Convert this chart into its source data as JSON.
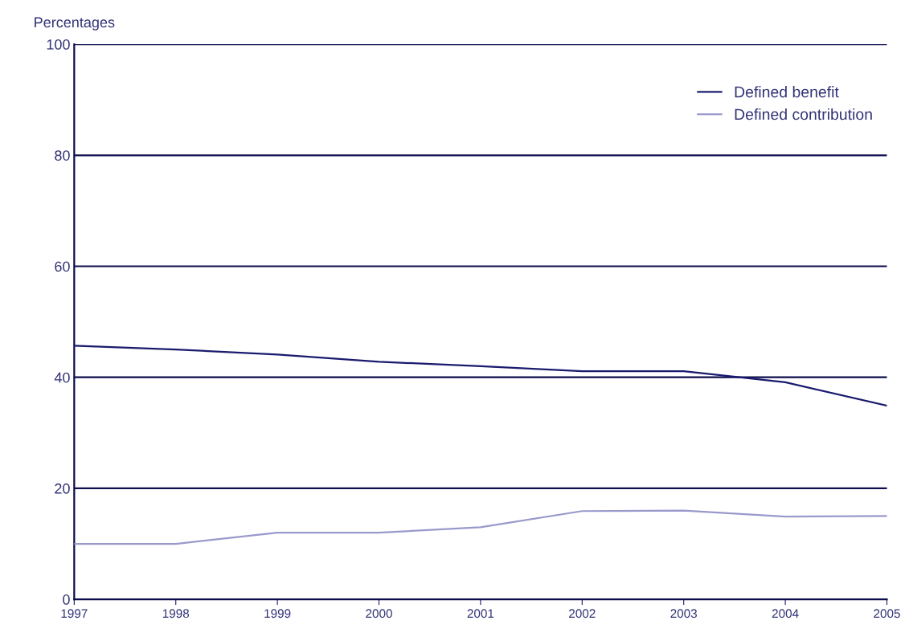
{
  "chart_data": {
    "type": "line",
    "ylabel": "Percentages",
    "x": [
      1997,
      1998,
      1999,
      2000,
      2001,
      2002,
      2003,
      2004,
      2005
    ],
    "series": [
      {
        "name": "Defined benefit",
        "color": "#1a1a6e",
        "values": [
          45.7,
          45,
          44.1,
          42.8,
          42,
          41.1,
          41.1,
          39.1,
          34.9
        ]
      },
      {
        "name": "Defined contribution",
        "color": "#9999cc",
        "values": [
          10,
          10,
          12,
          12,
          13,
          15.9,
          16,
          14.9,
          15
        ]
      }
    ],
    "xlim": [
      1997,
      2005
    ],
    "xticks": [
      1997,
      1998,
      1999,
      2000,
      2001,
      2002,
      2003,
      2004,
      2005
    ],
    "ylim": [
      0,
      100
    ],
    "yticks": [
      0,
      20,
      40,
      60,
      80,
      100
    ],
    "grid": "y",
    "legend": "top right",
    "marker": "none",
    "line_style": "solid"
  }
}
